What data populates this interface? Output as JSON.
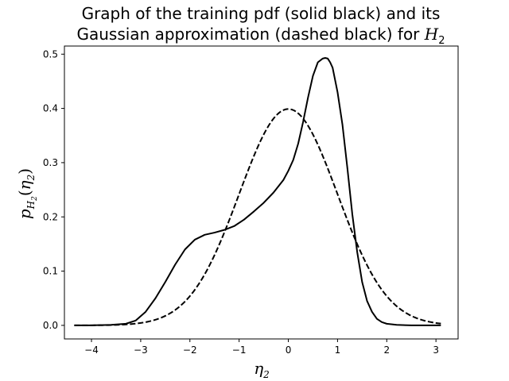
{
  "chart_data": {
    "type": "line",
    "title": {
      "line1": "Graph of the training pdf (solid black) and its",
      "line2_prefix": "Gaussian approximation (dashed black) for ",
      "line2_symbol": "H",
      "line2_sub": "2"
    },
    "xlabel": {
      "symbol": "η",
      "sub": "2"
    },
    "ylabel": {
      "p": "p",
      "h": "H",
      "hsub": "2",
      "open": "(",
      "eta": "η",
      "etasub": "2",
      "close": ")"
    },
    "xlim": [
      -4.55,
      3.45
    ],
    "ylim": [
      -0.025,
      0.515
    ],
    "xticks": [
      -4,
      -3,
      -2,
      -1,
      0,
      1,
      2,
      3
    ],
    "xtick_labels": [
      "−4",
      "−3",
      "−2",
      "−1",
      "0",
      "1",
      "2",
      "3"
    ],
    "yticks": [
      0.0,
      0.1,
      0.2,
      0.3,
      0.4,
      0.5
    ],
    "ytick_labels": [
      "0.0",
      "0.1",
      "0.2",
      "0.3",
      "0.4",
      "0.5"
    ],
    "series": [
      {
        "name": "training pdf",
        "style": "solid",
        "color": "#000000",
        "x": [
          -4.35,
          -4.0,
          -3.6,
          -3.3,
          -3.1,
          -2.9,
          -2.7,
          -2.5,
          -2.3,
          -2.1,
          -1.9,
          -1.7,
          -1.5,
          -1.3,
          -1.1,
          -0.9,
          -0.7,
          -0.5,
          -0.3,
          -0.1,
          0.0,
          0.1,
          0.2,
          0.3,
          0.4,
          0.5,
          0.6,
          0.7,
          0.75,
          0.8,
          0.85,
          0.9,
          1.0,
          1.1,
          1.2,
          1.3,
          1.4,
          1.5,
          1.6,
          1.7,
          1.8,
          1.9,
          2.0,
          2.2,
          2.5,
          3.1
        ],
        "y": [
          0.0,
          0.0,
          0.001,
          0.003,
          0.009,
          0.025,
          0.05,
          0.08,
          0.112,
          0.14,
          0.158,
          0.167,
          0.171,
          0.176,
          0.183,
          0.195,
          0.21,
          0.226,
          0.245,
          0.268,
          0.285,
          0.305,
          0.335,
          0.375,
          0.42,
          0.46,
          0.485,
          0.492,
          0.493,
          0.492,
          0.485,
          0.475,
          0.43,
          0.37,
          0.29,
          0.205,
          0.135,
          0.08,
          0.045,
          0.025,
          0.012,
          0.006,
          0.003,
          0.001,
          0.0,
          0.0
        ]
      },
      {
        "name": "Gaussian approximation",
        "style": "dashed",
        "color": "#000000",
        "function": "standard_normal",
        "x_range": [
          -4.35,
          3.1
        ]
      }
    ]
  }
}
